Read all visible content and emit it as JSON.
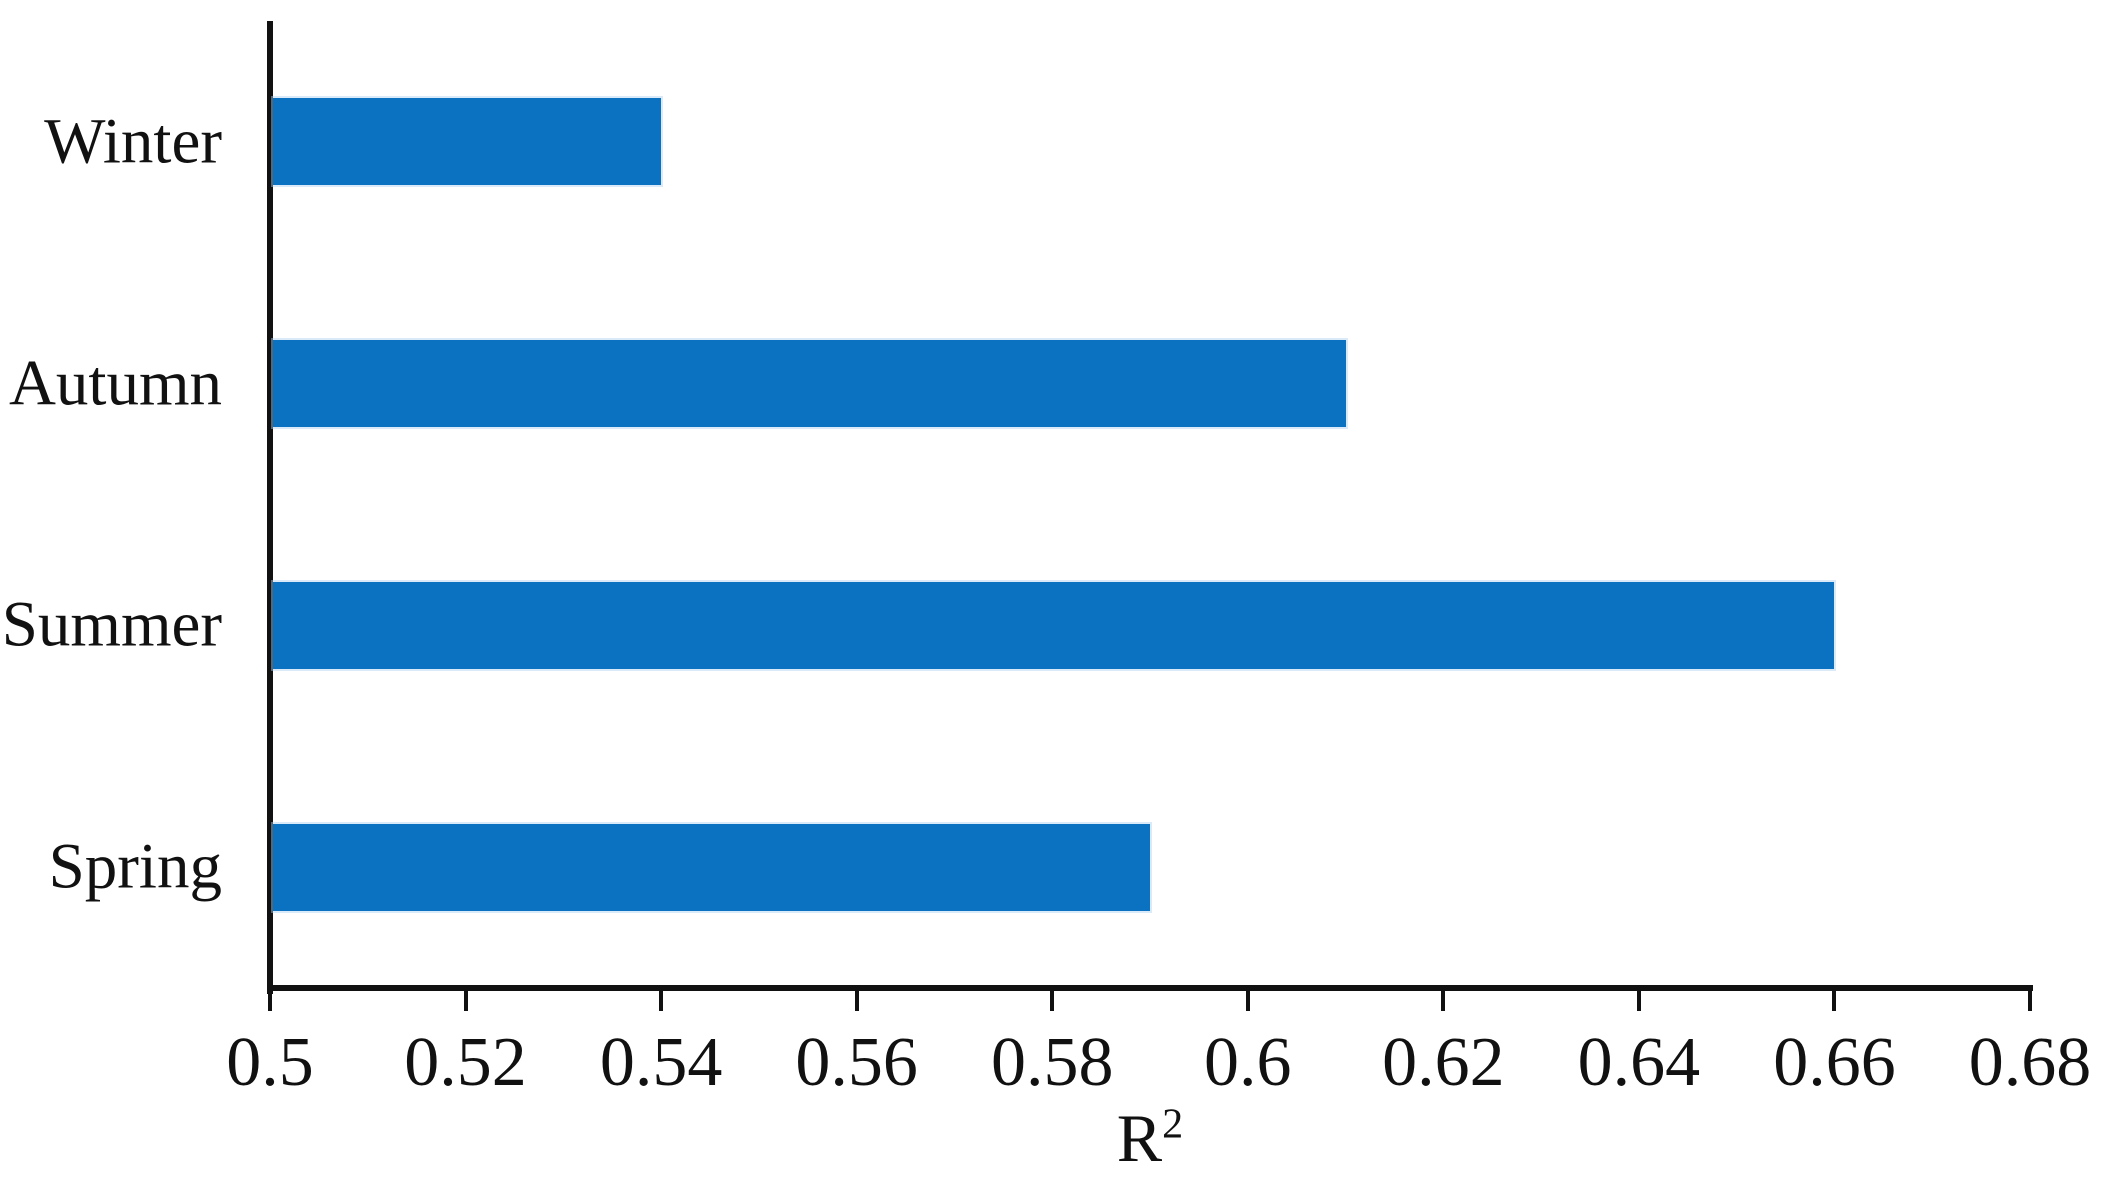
{
  "chart_data": {
    "type": "bar",
    "orientation": "horizontal",
    "title": "",
    "categories": [
      "Winter",
      "Autumn",
      "Summer",
      "Spring"
    ],
    "values": [
      0.54,
      0.61,
      0.66,
      0.59
    ],
    "series": [
      {
        "name": "R2",
        "values": [
          0.54,
          0.61,
          0.66,
          0.59
        ]
      }
    ],
    "xlabel": "R²",
    "xlabel_base": "R",
    "xlabel_superscript": "2",
    "ylabel": "",
    "xlim": [
      0.5,
      0.68
    ],
    "xticks": [
      0.5,
      0.52,
      0.54,
      0.56,
      0.58,
      0.6,
      0.62,
      0.64,
      0.66,
      0.68
    ],
    "xtick_labels": [
      "0.5",
      "0.52",
      "0.54",
      "0.56",
      "0.58",
      "0.6",
      "0.62",
      "0.64",
      "0.66",
      "0.68"
    ],
    "grid": false,
    "legend": "none",
    "colors": {
      "bar": "#0B72C2",
      "axis": "#111111",
      "text": "#111111",
      "background": "#FFFFFF"
    }
  }
}
